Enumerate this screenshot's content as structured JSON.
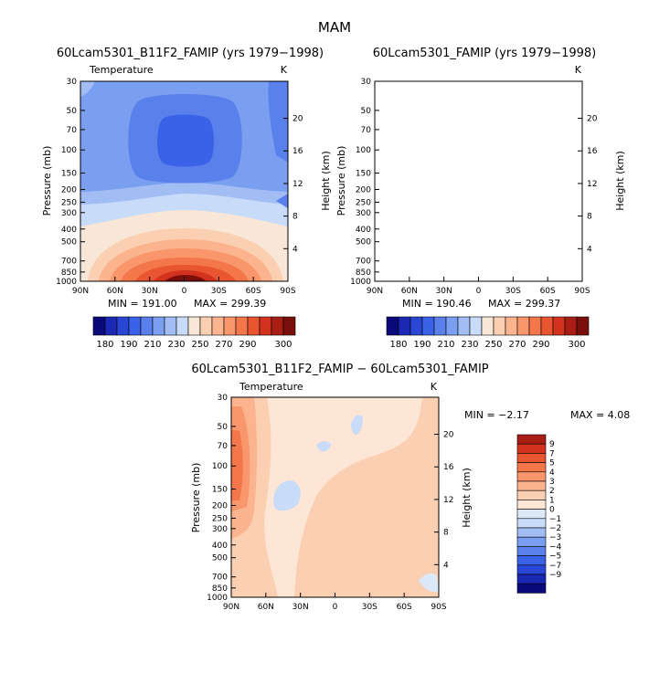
{
  "figure_title": "MAM",
  "colors": {
    "abs_levels": [
      "#0a0a7a",
      "#1a28b4",
      "#2a46d4",
      "#3a62e8",
      "#5a80ec",
      "#7a9ef0",
      "#a2bdf4",
      "#c8dbf8",
      "#f8e6d6",
      "#fbcfb2",
      "#fcb48e",
      "#f9966c",
      "#f4774c",
      "#e85530",
      "#d2321e",
      "#a81e14",
      "#7a0e0a"
    ],
    "diff_levels": [
      "#0a0a7a",
      "#1a28b4",
      "#2a46d4",
      "#3a62e8",
      "#5a80ec",
      "#7a9ef0",
      "#a2bdf4",
      "#c8dbf8",
      "#dce9f8",
      "#fde6d6",
      "#fbcfb2",
      "#fcb48e",
      "#f9966c",
      "#f4774c",
      "#e85530",
      "#d2321e",
      "#a81e14"
    ]
  },
  "chart_data": [
    {
      "type": "contour",
      "title": "60Lcam5301_B11F2_FAMIP (yrs 1979−1998)",
      "variable": "Temperature",
      "units": "K",
      "ylabel": "Pressure (mb)",
      "ylabel_right": "Height (km)",
      "xticks": [
        "90N",
        "60N",
        "30N",
        "0",
        "30S",
        "60S",
        "90S"
      ],
      "yticks": [
        "30",
        "50",
        "70",
        "100",
        "150",
        "200",
        "250",
        "300",
        "400",
        "500",
        "700",
        "850",
        "1000"
      ],
      "yticks_right": [
        "20",
        "16",
        "12",
        "8",
        "4"
      ],
      "min_text": "MIN = 191.00",
      "max_text": "MAX = 299.39",
      "levels": [
        180,
        185,
        190,
        200,
        210,
        220,
        230,
        240,
        250,
        260,
        270,
        280,
        290,
        295,
        300
      ],
      "colorbar_labels": [
        "180",
        "190",
        "210",
        "230",
        "250",
        "270",
        "290",
        "300"
      ]
    },
    {
      "type": "contour",
      "title": "60Lcam5301_FAMIP (yrs 1979−1998)",
      "variable": "Temperature",
      "units": "K",
      "ylabel": "Pressure (mb)",
      "ylabel_right": "Height (km)",
      "xticks": [
        "90N",
        "60N",
        "30N",
        "0",
        "30S",
        "60S",
        "90S"
      ],
      "yticks": [
        "30",
        "50",
        "70",
        "100",
        "150",
        "200",
        "250",
        "300",
        "400",
        "500",
        "700",
        "850",
        "1000"
      ],
      "yticks_right": [
        "20",
        "16",
        "12",
        "8",
        "4"
      ],
      "min_text": "MIN = 190.46",
      "max_text": "MAX = 299.37",
      "levels": [
        180,
        185,
        190,
        200,
        210,
        220,
        230,
        240,
        250,
        260,
        270,
        280,
        290,
        295,
        300
      ],
      "colorbar_labels": [
        "180",
        "190",
        "210",
        "230",
        "250",
        "270",
        "290",
        "300"
      ]
    },
    {
      "type": "contour",
      "title": "60Lcam5301_B11F2_FAMIP − 60Lcam5301_FAMIP",
      "variable": "Temperature",
      "units": "K",
      "ylabel": "Pressure (mb)",
      "ylabel_right": "Height (km)",
      "xticks": [
        "90N",
        "60N",
        "30N",
        "0",
        "30S",
        "60S",
        "90S"
      ],
      "yticks": [
        "30",
        "50",
        "70",
        "100",
        "150",
        "200",
        "250",
        "300",
        "400",
        "500",
        "700",
        "850",
        "1000"
      ],
      "yticks_right": [
        "20",
        "16",
        "12",
        "8",
        "4"
      ],
      "min_text": "MIN =   −2.17",
      "max_text": "MAX =    4.08",
      "levels": [
        "9",
        "7",
        "5",
        "4",
        "3",
        "2",
        "1",
        "0",
        "−1",
        "−2",
        "−3",
        "−4",
        "−5",
        "−7",
        "−9"
      ]
    }
  ]
}
